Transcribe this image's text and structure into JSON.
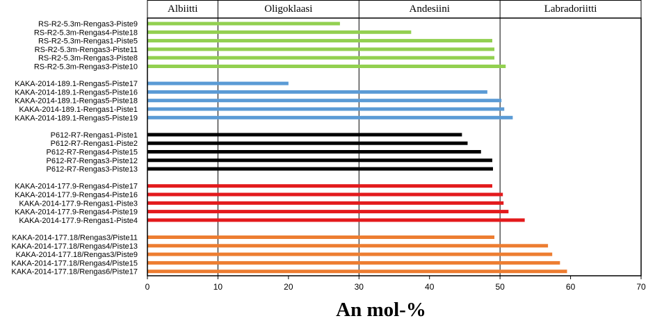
{
  "chart_data": {
    "type": "bar",
    "orientation": "horizontal",
    "xlabel": "An mol-%",
    "xlim": [
      0,
      70
    ],
    "xticks": [
      0,
      10,
      20,
      30,
      40,
      50,
      60,
      70
    ],
    "x_gridlines": [
      10,
      30,
      50
    ],
    "zones": [
      {
        "name": "Albiitti",
        "range": [
          0,
          10
        ]
      },
      {
        "name": "Oligoklaasi",
        "range": [
          10,
          30
        ]
      },
      {
        "name": "Andesiini",
        "range": [
          30,
          50
        ]
      },
      {
        "name": "Labradoriitti",
        "range": [
          50,
          70
        ]
      }
    ],
    "groups": [
      {
        "color": "#92d050",
        "bars": [
          {
            "label": "RS-R2-5.3m-Rengas3-Piste9",
            "value": 27.3
          },
          {
            "label": "RS-R2-5.3m-Rengas4-Piste18",
            "value": 37.4
          },
          {
            "label": "RS-R2-5.3m-Rengas1-Piste5",
            "value": 48.9
          },
          {
            "label": "RS-R2-5.3m-Rengas3-Piste11",
            "value": 49.2
          },
          {
            "label": "RS-R2-5.3m-Rengas3-Piste8",
            "value": 49.2
          },
          {
            "label": "RS-R2-5.3m-Rengas3-Piste10",
            "value": 50.8
          }
        ]
      },
      {
        "color": "#5b9bd5",
        "bars": [
          {
            "label": "KAKA-2014-189.1-Rengas5-Piste17",
            "value": 20.0
          },
          {
            "label": "KAKA-2014-189.1-Rengas5-Piste16",
            "value": 48.2
          },
          {
            "label": "KAKA-2014-189.1-Rengas5-Piste18",
            "value": 50.2
          },
          {
            "label": "KAKA-2014-189.1-Rengas1-Piste1",
            "value": 50.6
          },
          {
            "label": "KAKA-2014-189.1-Rengas5-Piste19",
            "value": 51.8
          }
        ]
      },
      {
        "color": "#000000",
        "bars": [
          {
            "label": "P612-R7-Rengas1-Piste1",
            "value": 44.6
          },
          {
            "label": "P612-R7-Rengas1-Piste2",
            "value": 45.4
          },
          {
            "label": "P612-R7-Rengas4-Piste15",
            "value": 47.3
          },
          {
            "label": "P612-R7-Rengas3-Piste12",
            "value": 48.9
          },
          {
            "label": "P612-R7-Rengas3-Piste13",
            "value": 49.0
          }
        ]
      },
      {
        "color": "#e31a1c",
        "bars": [
          {
            "label": "KAKA-2014-177.9-Rengas4-Piste17",
            "value": 48.9
          },
          {
            "label": "KAKA-2014-177.9-Rengas4-Piste16",
            "value": 50.4
          },
          {
            "label": "KAKA-2014-177.9-Rengas1-Piste3",
            "value": 50.5
          },
          {
            "label": "KAKA-2014-177.9-Rengas4-Piste19",
            "value": 51.2
          },
          {
            "label": "KAKA-2014-177.9-Rengas1-Piste4",
            "value": 53.5
          }
        ]
      },
      {
        "color": "#ed7d31",
        "bars": [
          {
            "label": "KAKA-2014-177.18/Rengas3/Piste11",
            "value": 49.2
          },
          {
            "label": "KAKA-2014-177.18/Rengas4/Piste13",
            "value": 56.8
          },
          {
            "label": "KAKA-2014-177.18/Rengas3/Piste9",
            "value": 57.4
          },
          {
            "label": "KAKA-2014-177.18/Rengas4/Piste15",
            "value": 58.5
          },
          {
            "label": "KAKA-2014-177.18/Rengas6/Piste17",
            "value": 59.5
          }
        ]
      }
    ],
    "grid": false,
    "legend": "none"
  }
}
